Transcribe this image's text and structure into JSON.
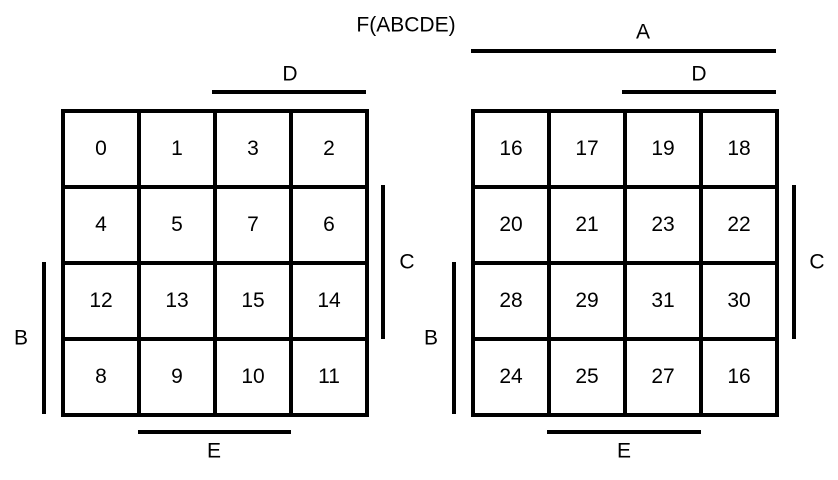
{
  "function_label": "F(ABCDE)",
  "maps": [
    {
      "cells": [
        [
          "0",
          "1",
          "3",
          "2"
        ],
        [
          "4",
          "5",
          "7",
          "6"
        ],
        [
          "12",
          "13",
          "15",
          "14"
        ],
        [
          "8",
          "9",
          "10",
          "11"
        ]
      ],
      "labels": {
        "top": "D",
        "right": "C",
        "left": "B",
        "bottom": "E"
      }
    },
    {
      "cells": [
        [
          "16",
          "17",
          "19",
          "18"
        ],
        [
          "20",
          "21",
          "23",
          "22"
        ],
        [
          "28",
          "29",
          "31",
          "30"
        ],
        [
          "24",
          "25",
          "27",
          "16"
        ]
      ],
      "labels": {
        "outer_top": "A",
        "top": "D",
        "right": "C",
        "left": "B",
        "bottom": "E"
      }
    }
  ]
}
